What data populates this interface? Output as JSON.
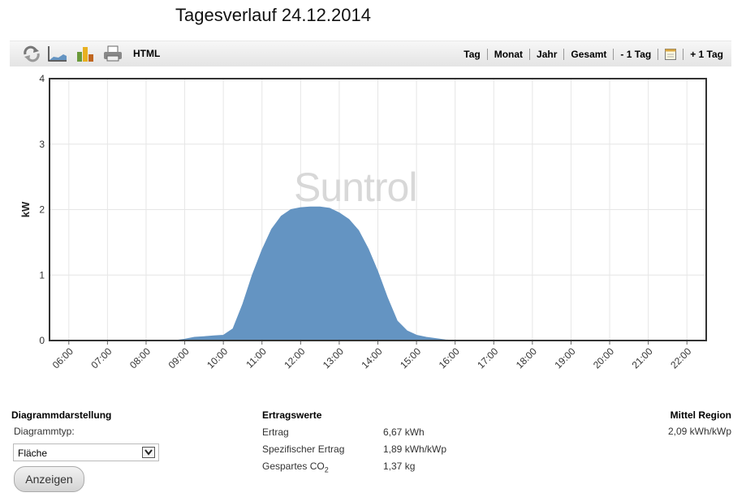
{
  "title": "Tagesverlauf 24.12.2014",
  "toolbar": {
    "icons": [
      "refresh-icon",
      "area-chart-icon",
      "bar-chart-icon",
      "print-icon"
    ],
    "html_label": "HTML",
    "nav": [
      "Tag",
      "Monat",
      "Jahr",
      "Gesamt",
      "- 1 Tag",
      "+ 1 Tag"
    ]
  },
  "watermark": "Suntrol",
  "chart_data": {
    "type": "area",
    "ylabel": "kW",
    "xlabel": "",
    "ylim": [
      0,
      4
    ],
    "yticks": [
      "0",
      "1",
      "2",
      "3",
      "4"
    ],
    "xticks": [
      "06:00",
      "07:00",
      "08:00",
      "09:00",
      "10:00",
      "11:00",
      "12:00",
      "13:00",
      "14:00",
      "15:00",
      "16:00",
      "17:00",
      "18:00",
      "19:00",
      "20:00",
      "21:00",
      "22:00"
    ],
    "x": [
      "08:45",
      "09:00",
      "09:15",
      "09:30",
      "09:45",
      "10:00",
      "10:15",
      "10:30",
      "10:45",
      "11:00",
      "11:15",
      "11:30",
      "11:45",
      "12:00",
      "12:15",
      "12:30",
      "12:45",
      "13:00",
      "13:15",
      "13:30",
      "13:45",
      "14:00",
      "14:15",
      "14:30",
      "14:45",
      "15:00",
      "15:15",
      "15:30",
      "15:45",
      "16:00"
    ],
    "values": [
      0,
      0.02,
      0.05,
      0.06,
      0.07,
      0.08,
      0.18,
      0.55,
      1.0,
      1.38,
      1.7,
      1.9,
      2.0,
      2.03,
      2.04,
      2.04,
      2.02,
      1.95,
      1.85,
      1.68,
      1.4,
      1.05,
      0.65,
      0.3,
      0.15,
      0.08,
      0.05,
      0.03,
      0.01,
      0
    ],
    "color": "#6494c2",
    "grid": true
  },
  "bottom": {
    "diagramm_heading": "Diagrammdarstellung",
    "diagrammtyp_label": "Diagrammtyp:",
    "diagrammtyp_value": "Fläche",
    "button_label": "Anzeigen",
    "ertrag_heading": "Ertragswerte",
    "rows": [
      {
        "label": "Ertrag",
        "value": "6,67 kWh"
      },
      {
        "label": "Spezifischer Ertrag",
        "value": "1,89 kWh/kWp"
      },
      {
        "label": "Gespartes CO",
        "sub": "2",
        "value": "1,37 kg"
      }
    ],
    "region_heading": "Mittel Region",
    "region_value": "2,09 kWh/kWp"
  }
}
